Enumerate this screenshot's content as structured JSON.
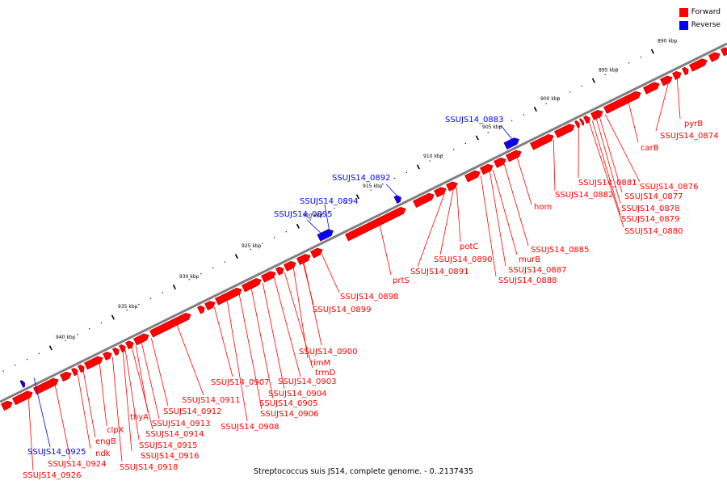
{
  "legend": {
    "forward_label": "Forward",
    "reverse_label": "Reverse",
    "forward_color": "#ff0000",
    "reverse_color": "#0000ff"
  },
  "caption": "Streptococcus suis JS14, complete genome. - 0..2137435",
  "backbone_color": "#808080",
  "scale_ticks": [
    {
      "label": "890 kbp",
      "kbp": 890
    },
    {
      "label": "895 kbp",
      "kbp": 895
    },
    {
      "label": "900 kbp",
      "kbp": 900
    },
    {
      "label": "905 kbp",
      "kbp": 905
    },
    {
      "label": "910 kbp",
      "kbp": 910
    },
    {
      "label": "915 kbp",
      "kbp": 915
    },
    {
      "label": "920 kbp",
      "kbp": 920
    },
    {
      "label": "925 kbp",
      "kbp": 925
    },
    {
      "label": "930 kbp",
      "kbp": 930
    },
    {
      "label": "935 kbp",
      "kbp": 935
    },
    {
      "label": "940 kbp",
      "kbp": 940
    }
  ],
  "gene_labels": [
    {
      "text": "pyrB",
      "strand": "forward"
    },
    {
      "text": "SSUJS14_0874",
      "strand": "forward"
    },
    {
      "text": "carB",
      "strand": "forward"
    },
    {
      "text": "SSUJS14_0876",
      "strand": "forward"
    },
    {
      "text": "SSUJS14_0877",
      "strand": "forward"
    },
    {
      "text": "SSUJS14_0878",
      "strand": "forward"
    },
    {
      "text": "SSUJS14_0879",
      "strand": "forward"
    },
    {
      "text": "SSUJS14_0880",
      "strand": "forward"
    },
    {
      "text": "SSUJS14_0881",
      "strand": "forward"
    },
    {
      "text": "SSUJS14_0882",
      "strand": "forward"
    },
    {
      "text": "SSUJS14_0883",
      "strand": "reverse"
    },
    {
      "text": "hom",
      "strand": "forward"
    },
    {
      "text": "SSUJS14_0885",
      "strand": "forward"
    },
    {
      "text": "SSUJS14_0887",
      "strand": "forward"
    },
    {
      "text": "SSUJS14_0888",
      "strand": "forward"
    },
    {
      "text": "murB",
      "strand": "forward"
    },
    {
      "text": "potC",
      "strand": "forward"
    },
    {
      "text": "SSUJS14_0890",
      "strand": "forward"
    },
    {
      "text": "SSUJS14_0891",
      "strand": "forward"
    },
    {
      "text": "SSUJS14_0892",
      "strand": "reverse"
    },
    {
      "text": "SSUJS14_0894",
      "strand": "reverse"
    },
    {
      "text": "SSUJS14_0895",
      "strand": "reverse"
    },
    {
      "text": "prtS",
      "strand": "forward"
    },
    {
      "text": "SSUJS14_0898",
      "strand": "forward"
    },
    {
      "text": "SSUJS14_0899",
      "strand": "forward"
    },
    {
      "text": "SSUJS14_0900",
      "strand": "forward"
    },
    {
      "text": "rimM",
      "strand": "forward"
    },
    {
      "text": "trmD",
      "strand": "forward"
    },
    {
      "text": "SSUJS14_0903",
      "strand": "forward"
    },
    {
      "text": "SSUJS14_0904",
      "strand": "forward"
    },
    {
      "text": "SSUJS14_0905",
      "strand": "forward"
    },
    {
      "text": "SSUJS14_0906",
      "strand": "forward"
    },
    {
      "text": "SSUJS14_0907",
      "strand": "forward"
    },
    {
      "text": "SSUJS14_0908",
      "strand": "forward"
    },
    {
      "text": "SSUJS14_0911",
      "strand": "forward"
    },
    {
      "text": "SSUJS14_0912",
      "strand": "forward"
    },
    {
      "text": "SSUJS14_0913",
      "strand": "forward"
    },
    {
      "text": "thyA",
      "strand": "forward"
    },
    {
      "text": "SSUJS14_0914",
      "strand": "forward"
    },
    {
      "text": "SSUJS14_0915",
      "strand": "forward"
    },
    {
      "text": "SSUJS14_0916",
      "strand": "forward"
    },
    {
      "text": "SSUJS14_0918",
      "strand": "forward"
    },
    {
      "text": "clpX",
      "strand": "forward"
    },
    {
      "text": "engB",
      "strand": "forward"
    },
    {
      "text": "ndk",
      "strand": "forward"
    },
    {
      "text": "SSUJS14_0924",
      "strand": "forward"
    },
    {
      "text": "SSUJS14_0925",
      "strand": "reverse"
    },
    {
      "text": "SSUJS14_0926",
      "strand": "forward"
    }
  ]
}
